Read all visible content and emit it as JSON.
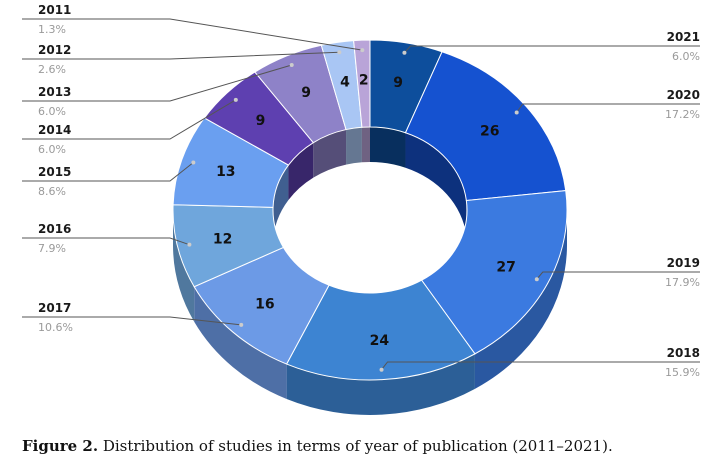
{
  "chart_data": {
    "type": "pie",
    "style": "3d-donut",
    "categories": [
      "2021",
      "2020",
      "2019",
      "2018",
      "2017",
      "2016",
      "2015",
      "2014",
      "2013",
      "2012",
      "2011"
    ],
    "values": [
      9,
      26,
      27,
      24,
      16,
      12,
      13,
      9,
      9,
      4,
      2
    ],
    "percent_labels": [
      "6.0%",
      "17.2%",
      "17.9%",
      "15.9%",
      "10.6%",
      "7.9%",
      "8.6%",
      "6.0%",
      "6.0%",
      "2.6%",
      "1.3%"
    ],
    "colors": [
      "#0d4e9c",
      "#1552d0",
      "#3b7ae0",
      "#3d84d2",
      "#6c9ae6",
      "#6fa6dc",
      "#6a9ff0",
      "#5e40b0",
      "#8e82c8",
      "#a9c6f4",
      "#b9a4d8"
    ],
    "title": "",
    "xlabel": "",
    "ylabel": ""
  },
  "caption": {
    "label": "Figure 2.",
    "text": " Distribution of studies in terms of year of publication (2011–2021)."
  }
}
